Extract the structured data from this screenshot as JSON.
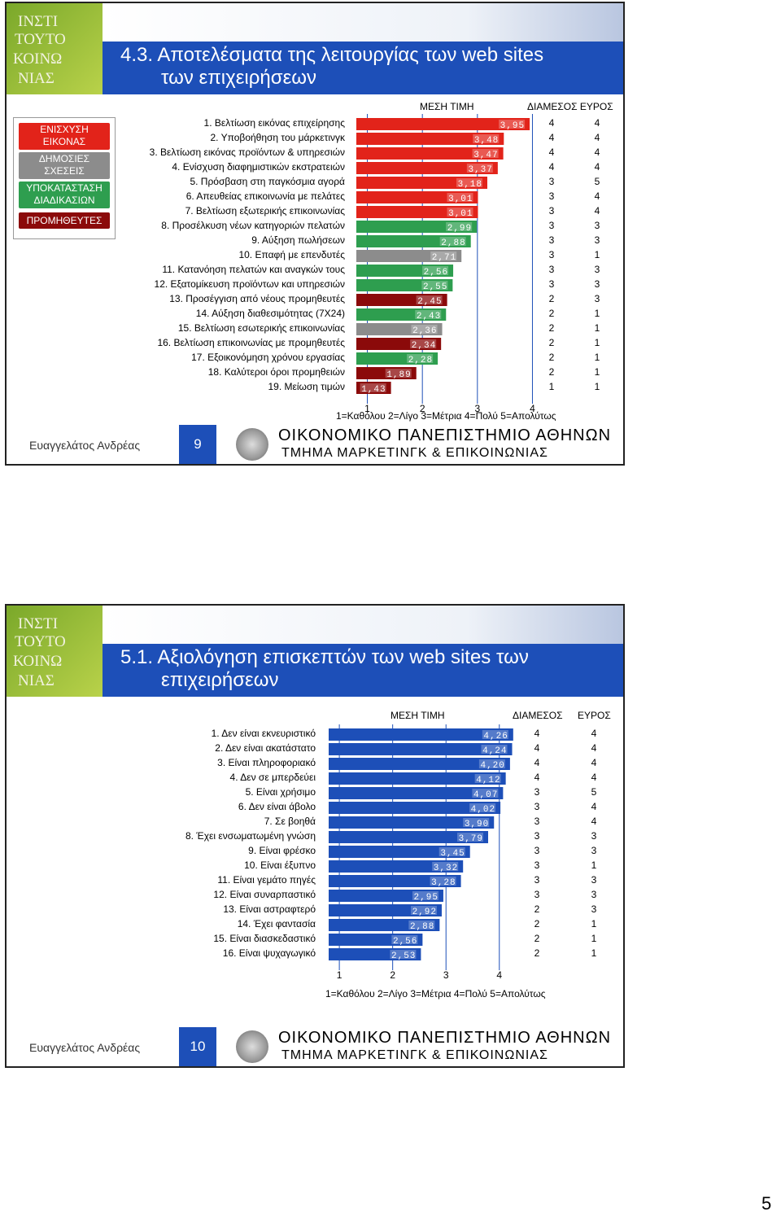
{
  "slide1": {
    "title_line1": "4.3. Αποτελέσματα της λειτουργίας των web sites",
    "title_line2": "των επιχειρήσεων",
    "legend": [
      {
        "label": "ΕΝΙΣΧΥΣΗ ΕΙΚΟΝΑΣ",
        "color": "#e2231a"
      },
      {
        "label": "ΔΗΜΟΣΙΕΣ ΣΧΕΣΕΙΣ",
        "color": "#8c8c8c"
      },
      {
        "label": "ΥΠΟΚΑΤΑΣΤΑΣΗ ΔΙΑΔΙΚΑΣΙΩΝ",
        "color": "#2e9e4f"
      },
      {
        "label": "ΠΡΟΜΗΘΕΥΤΕΣ",
        "color": "#8b0a0a"
      }
    ],
    "headers": {
      "mean": "ΜΕΣΗ ΤΙΜΗ",
      "median_range": "ΔΙΑΜΕΣΟΣ ΕΥΡΟΣ"
    },
    "scale_ticks": [
      "1",
      "2",
      "3",
      "4"
    ],
    "scale_legend": "1=Καθόλου  2=Λίγο  3=Μέτρια  4=Πολύ  5=Απολύτως",
    "footer_name": "Ευαγγελάτος Ανδρέας",
    "footer_num": "9",
    "univ1": "ΟΙΚΟΝΟΜΙΚΟ ΠΑΝΕΠΙΣΤΗΜΙΟ ΑΘΗΝΩΝ",
    "univ2": "ΤΜΗΜΑ ΜΑΡΚΕΤΙΝΓΚ & ΕΠΙΚΟΙΝΩΝΙΑΣ"
  },
  "slide2": {
    "title_line1": "5.1. Αξιολόγηση επισκεπτών των web sites των",
    "title_line2": "επιχειρήσεων",
    "headers": {
      "mean": "ΜΕΣΗ ΤΙΜΗ",
      "median": "ΔΙΑΜΕΣΟΣ",
      "range": "ΕΥΡΟΣ"
    },
    "scale_ticks": [
      "1",
      "2",
      "3",
      "4"
    ],
    "scale_legend": "1=Καθόλου  2=Λίγο  3=Μέτρια  4=Πολύ  5=Απολύτως",
    "footer_name": "Ευαγγελάτος Ανδρέας",
    "footer_num": "10",
    "univ1": "ΟΙΚΟΝΟΜΙΚΟ ΠΑΝΕΠΙΣΤΗΜΙΟ ΑΘΗΝΩΝ",
    "univ2": "ΤΜΗΜΑ ΜΑΡΚΕΤΙΝΓΚ & ΕΠΙΚΟΙΝΩΝΙΑΣ"
  },
  "page_number": "5",
  "chart_data": [
    {
      "type": "bar",
      "orientation": "horizontal",
      "xlim": [
        0.8,
        4.2
      ],
      "grid": true,
      "categories": [
        "1. Βελτίωση εικόνας επιχείρησης",
        "2. Υποβοήθηση του μάρκετινγκ",
        "3. Βελτίωση εικόνας προϊόντων & υπηρεσιών",
        "4. Ενίσχυση διαφημιστικών εκστρατειών",
        "5. Πρόσβαση στη παγκόσμια αγορά",
        "6. Απευθείας επικοινωνία με πελάτες",
        "7. Βελτίωση εξωτερικής επικοινωνίας",
        "8. Προσέλκυση νέων κατηγοριών πελατών",
        "9. Αύξηση πωλήσεων",
        "10. Επαφή με επενδυτές",
        "11. Κατανόηση πελατών και αναγκών τους",
        "12. Εξατομίκευση προϊόντων και υπηρεσιών",
        "13. Προσέγγιση από νέους προμηθευτές",
        "14. Αύξηση διαθεσιμότητας (7Χ24)",
        "15. Βελτίωση εσωτερικής επικοινωνίας",
        "16. Βελτίωση επικοινωνίας με προμηθευτές",
        "17. Εξοικονόμηση χρόνου εργασίας",
        "18. Καλύτεροι όροι προμηθειών",
        "19. Μείωση τιμών"
      ],
      "values": [
        3.95,
        3.48,
        3.47,
        3.37,
        3.18,
        3.01,
        3.01,
        2.99,
        2.88,
        2.71,
        2.56,
        2.55,
        2.45,
        2.43,
        2.36,
        2.34,
        2.28,
        1.89,
        1.43
      ],
      "labels": [
        "3,95",
        "3,48",
        "3,47",
        "3,37",
        "3,18",
        "3,01",
        "3,01",
        "2,99",
        "2,88",
        "2,71",
        "2,56",
        "2,55",
        "2,45",
        "2,43",
        "2,36",
        "2,34",
        "2,28",
        "1,89",
        "1,43"
      ],
      "groups": [
        0,
        0,
        0,
        0,
        0,
        0,
        0,
        2,
        2,
        1,
        2,
        2,
        3,
        2,
        1,
        3,
        2,
        3,
        3
      ],
      "group_colors": [
        "#e2231a",
        "#8c8c8c",
        "#2e9e4f",
        "#8b0a0a"
      ],
      "median": [
        "4",
        "4",
        "4",
        "4",
        "3",
        "3",
        "3",
        "3",
        "3",
        "3",
        "3",
        "3",
        "2",
        "2",
        "2",
        "2",
        "2",
        "2",
        "1"
      ],
      "range": [
        "4",
        "4",
        "4",
        "4",
        "5",
        "4",
        "4",
        "3",
        "3",
        "1",
        "3",
        "3",
        "3",
        "1",
        "1",
        "1",
        "1",
        "1",
        "1"
      ]
    },
    {
      "type": "bar",
      "orientation": "horizontal",
      "xlim": [
        0.8,
        4.4
      ],
      "grid": true,
      "color": "#1d4fb8",
      "categories": [
        "1. Δεν είναι εκνευριστικό",
        "2. Δεν είναι ακατάστατο",
        "3. Είναι πληροφοριακό",
        "4. Δεν σε μπερδεύει",
        "5. Είναι χρήσιμο",
        "6. Δεν είναι άβολο",
        "7. Σε βοηθά",
        "8. Έχει ενσωματωμένη γνώση",
        "9. Είναι φρέσκο",
        "10. Είναι έξυπνο",
        "11. Είναι γεμάτο πηγές",
        "12. Είναι συναρπαστικό",
        "13. Είναι αστραφτερό",
        "14. Έχει φαντασία",
        "15. Είναι διασκεδαστικό",
        "16. Είναι ψυχαγωγικό"
      ],
      "values": [
        4.26,
        4.24,
        4.2,
        4.12,
        4.07,
        4.02,
        3.9,
        3.79,
        3.45,
        3.32,
        3.28,
        2.95,
        2.92,
        2.88,
        2.56,
        2.53
      ],
      "labels": [
        "4,26",
        "4,24",
        "4,20",
        "4,12",
        "4,07",
        "4,02",
        "3,90",
        "3,79",
        "3,45",
        "3,32",
        "3,28",
        "2,95",
        "2,92",
        "2,88",
        "2,56",
        "2,53"
      ],
      "median": [
        "4",
        "4",
        "4",
        "4",
        "3",
        "3",
        "3",
        "3",
        "3",
        "3",
        "3",
        "3",
        "2",
        "2",
        "2",
        "2"
      ],
      "range": [
        "4",
        "4",
        "4",
        "4",
        "5",
        "4",
        "4",
        "3",
        "3",
        "1",
        "3",
        "3",
        "3",
        "1",
        "1",
        "1"
      ]
    }
  ]
}
